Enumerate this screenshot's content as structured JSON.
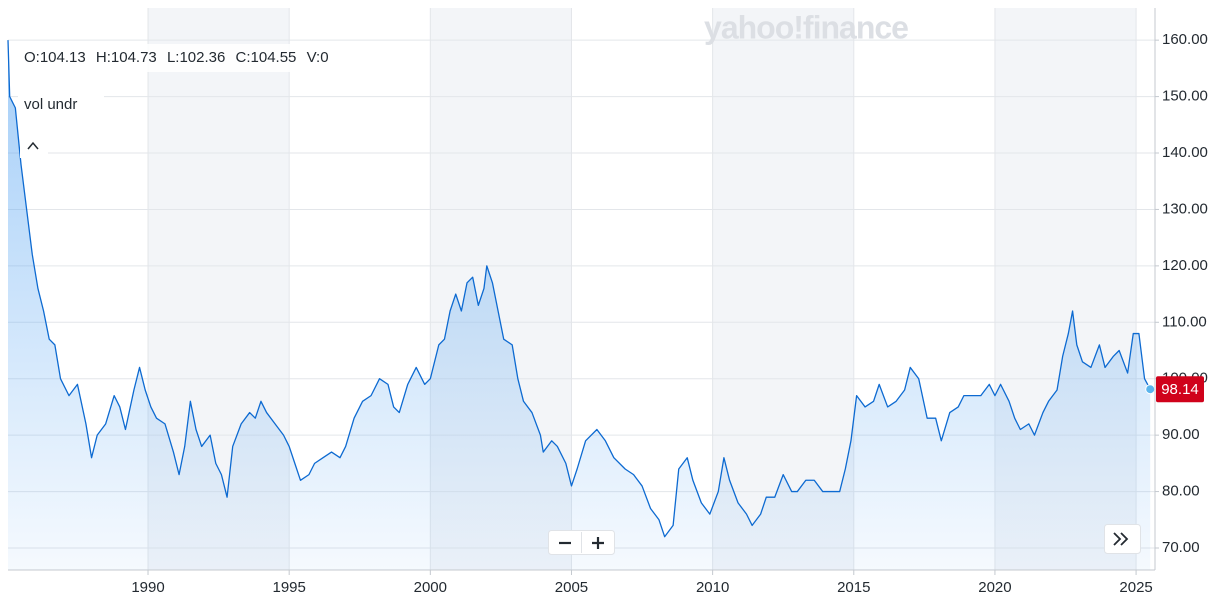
{
  "chart_data": {
    "type": "area",
    "watermark": "yahoo!finance",
    "ohlc": [
      "O:104.13",
      "H:104.73",
      "L:102.36",
      "C:104.55",
      "V:0"
    ],
    "indicator": "vol undr",
    "color": "#0d6ad1",
    "grid": true,
    "x": [
      1985.04,
      1985.1,
      1985.3,
      1985.5,
      1985.7,
      1985.9,
      1986.1,
      1986.3,
      1986.5,
      1986.7,
      1986.9,
      1987.2,
      1987.5,
      1987.8,
      1988.0,
      1988.2,
      1988.5,
      1988.8,
      1989.0,
      1989.2,
      1989.5,
      1989.7,
      1989.9,
      1990.1,
      1990.3,
      1990.6,
      1990.9,
      1991.1,
      1991.3,
      1991.5,
      1991.7,
      1991.9,
      1992.2,
      1992.4,
      1992.6,
      1992.8,
      1993.0,
      1993.3,
      1993.6,
      1993.8,
      1994.0,
      1994.2,
      1994.5,
      1994.8,
      1995.0,
      1995.2,
      1995.4,
      1995.7,
      1995.9,
      1996.2,
      1996.5,
      1996.8,
      1997.0,
      1997.3,
      1997.6,
      1997.9,
      1998.2,
      1998.5,
      1998.7,
      1998.9,
      1999.2,
      1999.5,
      1999.8,
      2000.0,
      2000.3,
      2000.5,
      2000.7,
      2000.9,
      2001.1,
      2001.3,
      2001.5,
      2001.7,
      2001.9,
      2002.0,
      2002.2,
      2002.4,
      2002.6,
      2002.9,
      2003.1,
      2003.3,
      2003.6,
      2003.9,
      2004.0,
      2004.3,
      2004.5,
      2004.8,
      2005.0,
      2005.2,
      2005.5,
      2005.9,
      2006.2,
      2006.5,
      2006.9,
      2007.2,
      2007.5,
      2007.8,
      2008.1,
      2008.3,
      2008.6,
      2008.8,
      2009.1,
      2009.3,
      2009.6,
      2009.9,
      2010.2,
      2010.4,
      2010.6,
      2010.9,
      2011.2,
      2011.4,
      2011.7,
      2011.9,
      2012.2,
      2012.5,
      2012.8,
      2013.0,
      2013.3,
      2013.6,
      2013.9,
      2014.2,
      2014.5,
      2014.7,
      2014.9,
      2015.1,
      2015.4,
      2015.7,
      2015.9,
      2016.2,
      2016.5,
      2016.8,
      2017.0,
      2017.3,
      2017.6,
      2017.9,
      2018.1,
      2018.4,
      2018.7,
      2018.9,
      2019.2,
      2019.5,
      2019.8,
      2020.0,
      2020.2,
      2020.5,
      2020.7,
      2020.9,
      2021.2,
      2021.4,
      2021.7,
      2021.9,
      2022.2,
      2022.4,
      2022.6,
      2022.75,
      2022.9,
      2023.1,
      2023.4,
      2023.7,
      2023.9,
      2024.2,
      2024.4,
      2024.7,
      2024.9,
      2025.1,
      2025.3,
      2025.5
    ],
    "values": [
      160,
      150,
      148,
      138,
      130,
      122,
      116,
      112,
      107,
      106,
      100,
      97,
      99,
      92,
      86,
      90,
      92,
      97,
      95,
      91,
      98,
      102,
      98,
      95,
      93,
      92,
      87,
      83,
      88,
      96,
      91,
      88,
      90,
      85,
      83,
      79,
      88,
      92,
      94,
      93,
      96,
      94,
      92,
      90,
      88,
      85,
      82,
      83,
      85,
      86,
      87,
      86,
      88,
      93,
      96,
      97,
      100,
      99,
      95,
      94,
      99,
      102,
      99,
      100,
      106,
      107,
      112,
      115,
      112,
      117,
      118,
      113,
      116,
      120,
      117,
      112,
      107,
      106,
      100,
      96,
      94,
      90,
      87,
      89,
      88,
      85,
      81,
      84,
      89,
      91,
      89,
      86,
      84,
      83,
      81,
      77,
      75,
      72,
      74,
      84,
      86,
      82,
      78,
      76,
      80,
      86,
      82,
      78,
      76,
      74,
      76,
      79,
      79,
      83,
      80,
      80,
      82,
      82,
      80,
      80,
      80,
      84,
      89,
      97,
      95,
      96,
      99,
      95,
      96,
      98,
      102,
      100,
      93,
      93,
      89,
      94,
      95,
      97,
      97,
      97,
      99,
      97,
      99,
      96,
      93,
      91,
      92,
      90,
      94,
      96,
      98,
      104,
      108,
      112,
      106,
      103,
      102,
      106,
      102,
      104,
      105,
      101,
      108,
      108,
      100,
      98.14
    ],
    "xlim": [
      1985.04,
      2025.67
    ],
    "xticks": [
      1990,
      1995,
      2000,
      2005,
      2010,
      2015,
      2020,
      2025
    ],
    "ylim": [
      66.1,
      165.7
    ],
    "yticks": [
      {
        "value": 70,
        "label": "70.00"
      },
      {
        "value": 80,
        "label": "80.00"
      },
      {
        "value": 90,
        "label": "90.00"
      },
      {
        "value": 100,
        "label": "100.00"
      },
      {
        "value": 110,
        "label": "110.00"
      },
      {
        "value": 120,
        "label": "120.00"
      },
      {
        "value": 130,
        "label": "130.00"
      },
      {
        "value": 140,
        "label": "140.00"
      },
      {
        "value": 150,
        "label": "150.00"
      },
      {
        "value": 160,
        "label": "160.00"
      }
    ]
  }
}
